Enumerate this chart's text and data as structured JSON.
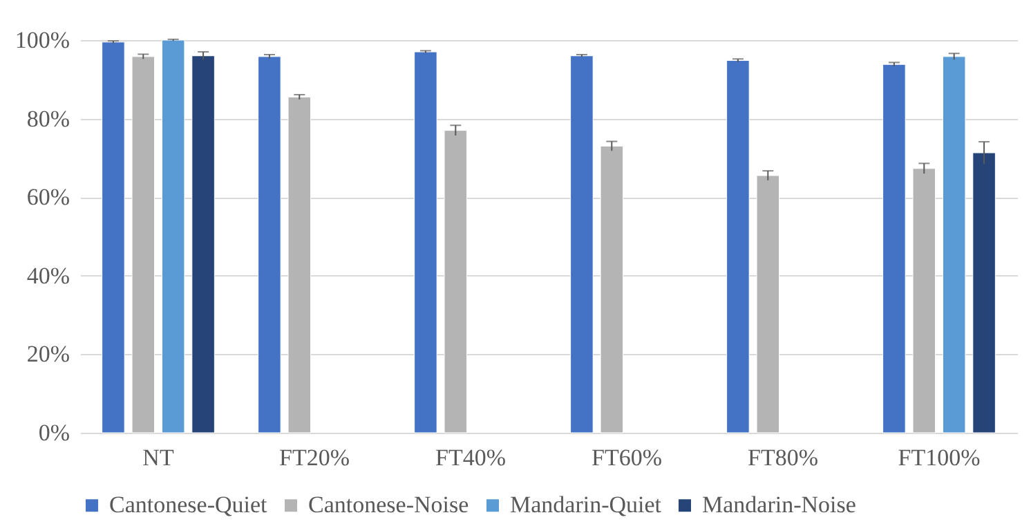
{
  "chart_data": {
    "type": "bar",
    "categories": [
      "NT",
      "FT20%",
      "FT40%",
      "FT60%",
      "FT80%",
      "FT100%"
    ],
    "series": [
      {
        "name": "Cantonese-Quiet",
        "color": "#4472c4",
        "values": [
          99.5,
          95.8,
          97,
          96,
          94.8,
          93.8
        ],
        "errors": [
          0.3,
          0.5,
          0.3,
          0.3,
          0.4,
          0.5
        ]
      },
      {
        "name": "Cantonese-Noise",
        "color": "#b4b4b4",
        "values": [
          95.8,
          85.5,
          77,
          73,
          65.5,
          67.3
        ],
        "errors": [
          0.6,
          0.6,
          1.3,
          1.2,
          1.2,
          1.3
        ]
      },
      {
        "name": "Mandarin-Quiet",
        "color": "#5b9bd5",
        "values": [
          100,
          null,
          null,
          null,
          null,
          95.8
        ],
        "errors": [
          0.2,
          null,
          null,
          null,
          null,
          0.8
        ]
      },
      {
        "name": "Mandarin-Noise",
        "color": "#264478",
        "values": [
          96,
          null,
          null,
          null,
          null,
          71.3
        ],
        "errors": [
          1,
          null,
          null,
          null,
          null,
          2.8
        ]
      }
    ],
    "ylim": [
      0,
      100
    ],
    "yticks": [
      {
        "value": 0,
        "label": "0%"
      },
      {
        "value": 20,
        "label": "20%"
      },
      {
        "value": 40,
        "label": "40%"
      },
      {
        "value": 60,
        "label": "60%"
      },
      {
        "value": 80,
        "label": "80%"
      },
      {
        "value": 100,
        "label": "100%"
      }
    ],
    "grid": "y",
    "legend": "bottom"
  }
}
